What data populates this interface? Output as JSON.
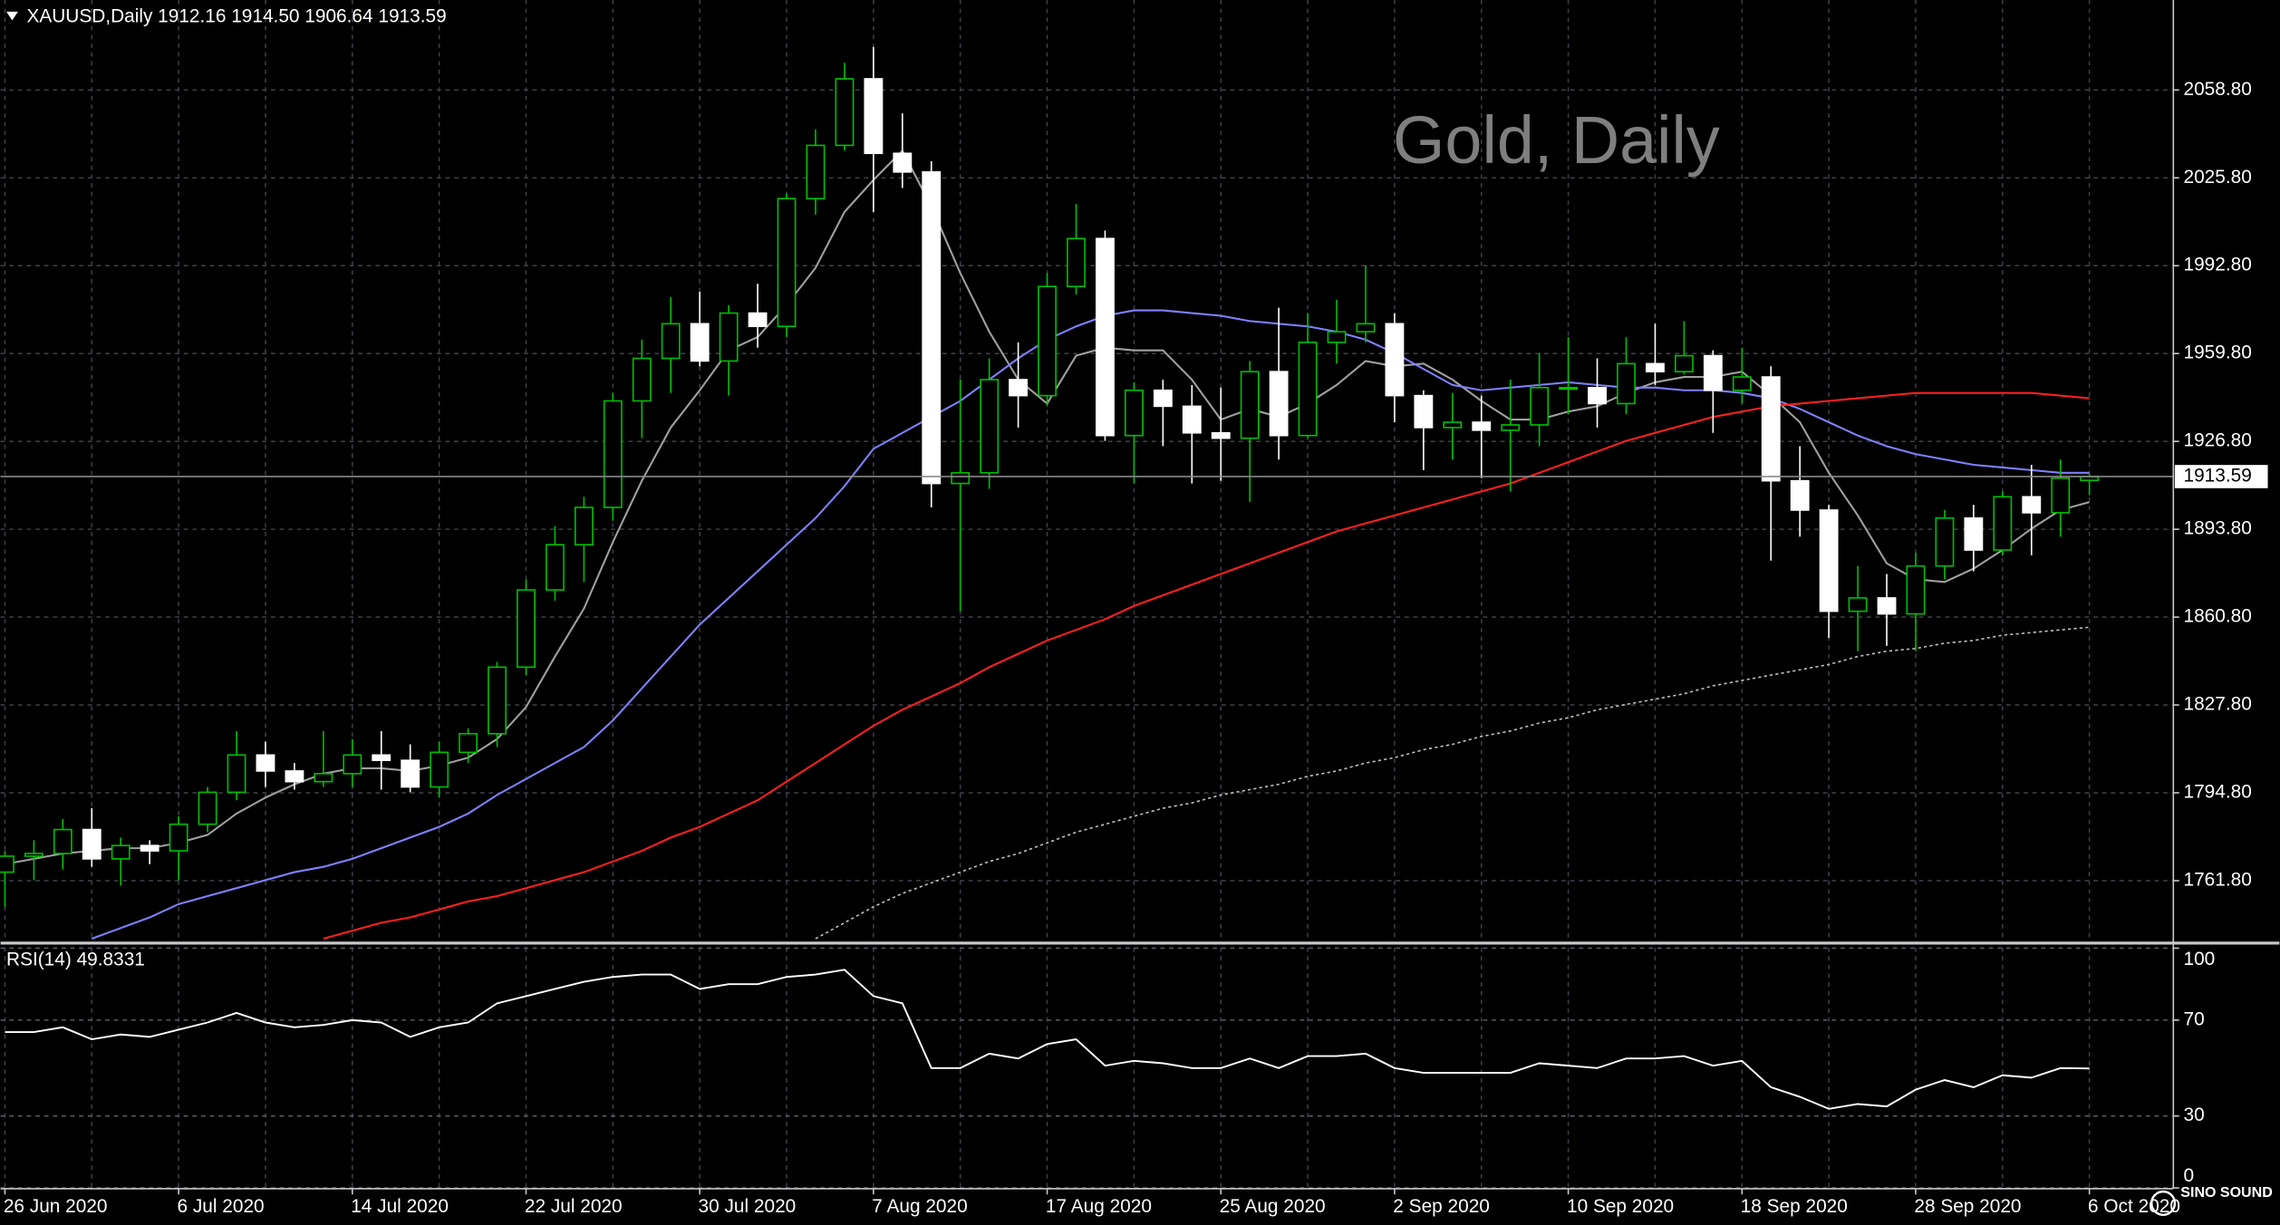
{
  "header": "XAUUSD,Daily  1912.16 1914.50 1906.64 1913.59",
  "watermark": "Gold, Daily",
  "logo": "SINO SOUND",
  "chart_data": [
    {
      "type": "candlestick",
      "categories": [
        "26 Jun 2020",
        null,
        null,
        null,
        null,
        null,
        "6 Jul 2020",
        null,
        null,
        null,
        null,
        null,
        "14 Jul 2020",
        null,
        null,
        null,
        null,
        null,
        "22 Jul 2020",
        null,
        null,
        null,
        null,
        null,
        "30 Jul 2020",
        null,
        null,
        null,
        null,
        null,
        "7 Aug 2020",
        null,
        null,
        null,
        null,
        null,
        "17 Aug 2020",
        null,
        null,
        null,
        null,
        null,
        "25 Aug 2020",
        null,
        null,
        null,
        null,
        null,
        "2 Sep 2020",
        null,
        null,
        null,
        null,
        null,
        "10 Sep 2020",
        null,
        null,
        null,
        null,
        null,
        "18 Sep 2020",
        null,
        null,
        null,
        null,
        null,
        "28 Sep 2020",
        null,
        null,
        null,
        null,
        null,
        "6 Oct 2020"
      ],
      "open": [
        1765,
        1771,
        1772,
        1781,
        1770,
        1775,
        1773,
        1783,
        1795,
        1809,
        1803,
        1799,
        1802,
        1809,
        1807,
        1797,
        1810,
        1817,
        1842,
        1871,
        1888,
        1902,
        1942,
        1958,
        1971,
        1957,
        1975,
        1970,
        2018,
        2038,
        2063,
        2035,
        2028,
        1911,
        1915,
        1950,
        1944,
        1985,
        2003,
        1929,
        1946,
        1940,
        1930,
        1928,
        1953,
        1929,
        1964,
        1968,
        1971,
        1944,
        1932,
        1934,
        1931,
        1933,
        1947,
        1947,
        1941,
        1956,
        1953,
        1959,
        1946,
        1951,
        1912,
        1901,
        1863,
        1868,
        1862,
        1880,
        1898,
        1886,
        1906,
        1900,
        1912.16
      ],
      "high": [
        1773,
        1777,
        1785,
        1789,
        1778,
        1777,
        1786,
        1797,
        1818,
        1814,
        1806,
        1818,
        1815,
        1818,
        1813,
        1814,
        1819,
        1844,
        1875,
        1895,
        1906,
        1945,
        1965,
        1981,
        1983,
        1978,
        1986,
        2020,
        2044,
        2069,
        2075,
        2050,
        2032,
        1950,
        1958,
        1964,
        1990,
        2016,
        2006,
        1949,
        1950,
        1948,
        1947,
        1957,
        1977,
        1975,
        1980,
        1993,
        1975,
        1946,
        1945,
        1944,
        1950,
        1960,
        1966,
        1958,
        1966,
        1971,
        1972,
        1961,
        1962,
        1955,
        1925,
        1903,
        1880,
        1877,
        1885,
        1901,
        1903,
        1908,
        1918,
        1920,
        1914.5
      ],
      "low": [
        1752,
        1762,
        1766,
        1767,
        1760,
        1768,
        1762,
        1780,
        1792,
        1797,
        1796,
        1797,
        1797,
        1796,
        1795,
        1793,
        1806,
        1812,
        1839,
        1867,
        1874,
        1897,
        1928,
        1945,
        1955,
        1944,
        1962,
        1966,
        2012,
        2036,
        2013,
        2022,
        1902,
        1863,
        1909,
        1932,
        1940,
        1982,
        1927,
        1911,
        1925,
        1911,
        1912,
        1904,
        1920,
        1928,
        1956,
        1964,
        1934,
        1916,
        1920,
        1913,
        1908,
        1925,
        1937,
        1932,
        1937,
        1948,
        1952,
        1930,
        1941,
        1882,
        1891,
        1853,
        1848,
        1850,
        1848,
        1875,
        1878,
        1884,
        1884,
        1891,
        1906.64
      ],
      "close": [
        1771,
        1772,
        1781,
        1770,
        1775,
        1773,
        1783,
        1795,
        1809,
        1803,
        1799,
        1802,
        1809,
        1807,
        1797,
        1810,
        1817,
        1842,
        1871,
        1888,
        1902,
        1942,
        1958,
        1971,
        1957,
        1975,
        1970,
        2018,
        2038,
        2063,
        2035,
        2028,
        1911,
        1915,
        1950,
        1944,
        1985,
        2003,
        1929,
        1946,
        1940,
        1930,
        1928,
        1953,
        1929,
        1964,
        1968,
        1971,
        1944,
        1932,
        1934,
        1931,
        1933,
        1947,
        1947,
        1941,
        1956,
        1953,
        1959,
        1946,
        1951,
        1912,
        1901,
        1863,
        1868,
        1862,
        1880,
        1898,
        1886,
        1906,
        1900,
        1913,
        1913.59
      ],
      "up_color": "#00c000",
      "down_color": "#ffffff",
      "overlays": [
        {
          "color": "#a0a0a0",
          "style": "solid",
          "values": [
            1768,
            1770,
            1772,
            1773,
            1774,
            1774,
            1776,
            1779,
            1787,
            1793,
            1798,
            1802,
            1804,
            1804,
            1803,
            1805,
            1808,
            1815,
            1827,
            1846,
            1864,
            1889,
            1912,
            1932,
            1946,
            1961,
            1966,
            1978,
            1992,
            2013,
            2025,
            2036,
            2015,
            1990,
            1968,
            1950,
            1941,
            1959,
            1962,
            1961,
            1961,
            1950,
            1935,
            1939,
            1936,
            1941,
            1948,
            1957,
            1955,
            1956,
            1950,
            1942,
            1935,
            1935,
            1938,
            1940,
            1945,
            1949,
            1951,
            1951,
            1953,
            1944,
            1934,
            1915,
            1899,
            1881,
            1875,
            1874,
            1879,
            1886,
            1894,
            1901,
            1904
          ]
        },
        {
          "color": "#8080ff",
          "style": "solid",
          "values": [
            null,
            null,
            null,
            1740,
            1744,
            1748,
            1753,
            1756,
            1759,
            1762,
            1765,
            1767,
            1770,
            1774,
            1778,
            1782,
            1787,
            1794,
            1800,
            1806,
            1812,
            1822,
            1834,
            1846,
            1858,
            1868,
            1878,
            1888,
            1898,
            1910,
            1924,
            1930,
            1936,
            1942,
            1950,
            1958,
            1965,
            1970,
            1974,
            1976,
            1976,
            1975,
            1974,
            1972,
            1971,
            1970,
            1968,
            1965,
            1960,
            1954,
            1948,
            1946,
            1947,
            1948,
            1949,
            1948,
            1947,
            1947,
            1946,
            1946,
            1945,
            1943,
            1939,
            1934,
            1929,
            1925,
            1922,
            1920,
            1918,
            1917,
            1916,
            1915,
            1915
          ]
        },
        {
          "color": "#ff2020",
          "style": "solid",
          "values": [
            null,
            null,
            null,
            null,
            null,
            null,
            null,
            null,
            null,
            null,
            null,
            1740,
            1743,
            1746,
            1748,
            1751,
            1754,
            1756,
            1759,
            1762,
            1765,
            1769,
            1773,
            1778,
            1782,
            1787,
            1792,
            1799,
            1806,
            1813,
            1820,
            1826,
            1831,
            1836,
            1842,
            1847,
            1852,
            1856,
            1860,
            1865,
            1869,
            1873,
            1877,
            1881,
            1885,
            1889,
            1893,
            1896,
            1899,
            1902,
            1905,
            1908,
            1911,
            1915,
            1919,
            1923,
            1927,
            1930,
            1933,
            1936,
            1938,
            1940,
            1941,
            1942,
            1943,
            1944,
            1945,
            1945,
            1945,
            1945,
            1945,
            1944,
            1943
          ]
        },
        {
          "color": "#c0c0c0",
          "style": "dotted",
          "values": [
            null,
            null,
            null,
            null,
            null,
            null,
            null,
            null,
            null,
            null,
            null,
            null,
            null,
            null,
            null,
            null,
            null,
            null,
            null,
            null,
            null,
            null,
            null,
            null,
            null,
            null,
            null,
            null,
            1740,
            1746,
            1752,
            1757,
            1761,
            1765,
            1769,
            1772,
            1776,
            1780,
            1783,
            1786,
            1789,
            1791,
            1794,
            1796,
            1798,
            1801,
            1803,
            1806,
            1808,
            1811,
            1813,
            1816,
            1818,
            1821,
            1823,
            1826,
            1828,
            1830,
            1832,
            1835,
            1837,
            1839,
            1841,
            1843,
            1846,
            1848,
            1849,
            1851,
            1852,
            1854,
            1855,
            1856,
            1857
          ]
        }
      ],
      "ylim": [
        1738.9,
        2092.6
      ],
      "yticks": [
        {
          "value": 2058.8,
          "label": "2058.80"
        },
        {
          "value": 2025.8,
          "label": "2025.80"
        },
        {
          "value": 1992.8,
          "label": "1992.80"
        },
        {
          "value": 1959.8,
          "label": "1959.80"
        },
        {
          "value": 1926.8,
          "label": "1926.80"
        },
        {
          "value": 1893.8,
          "label": "1893.80"
        },
        {
          "value": 1860.8,
          "label": "1860.80"
        },
        {
          "value": 1827.8,
          "label": "1827.80"
        },
        {
          "value": 1794.8,
          "label": "1794.80"
        },
        {
          "value": 1761.8,
          "label": "1761.80"
        }
      ],
      "grid": true,
      "last_price_line": true
    },
    {
      "type": "line",
      "title": "RSI(14) 49.8331",
      "color": "#ffffff",
      "values": [
        65,
        65,
        67,
        62,
        64,
        63,
        66,
        69,
        73,
        69,
        67,
        68,
        70,
        69,
        63,
        67,
        69,
        77,
        80,
        83,
        86,
        88,
        89,
        89,
        83,
        85,
        85,
        88,
        89,
        91,
        80,
        77,
        50,
        50,
        56,
        54,
        60,
        62,
        51,
        53,
        52,
        50,
        50,
        54,
        50,
        55,
        55,
        56,
        50,
        48,
        48,
        48,
        48,
        52,
        51,
        50,
        54,
        54,
        55,
        51,
        53,
        42,
        38,
        33,
        35,
        34,
        41,
        45,
        42,
        47,
        46,
        50,
        49.8331
      ],
      "ylim": [
        0,
        100
      ],
      "yticks": [
        100,
        70,
        30,
        0
      ],
      "grid": true
    }
  ]
}
